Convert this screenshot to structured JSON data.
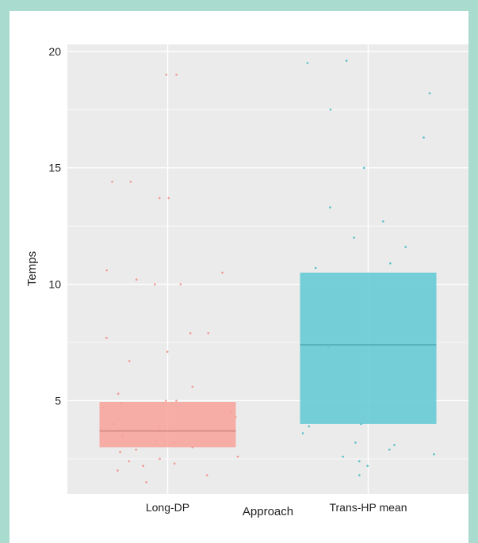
{
  "chart_data": {
    "type": "box",
    "xlabel": "Approach",
    "ylabel": "Temps",
    "categories": [
      "Long-DP",
      "Trans-HP mean"
    ],
    "yticks": [
      5,
      10,
      15,
      20
    ],
    "ylim": [
      1,
      20.3
    ],
    "grid": true,
    "legend": "none",
    "boxes": [
      {
        "category": "Long-DP",
        "q1": 3.0,
        "median": 3.7,
        "q3": 4.95,
        "color": "#f8a29a"
      },
      {
        "category": "Trans-HP mean",
        "q1": 4.0,
        "median": 7.4,
        "q3": 10.5,
        "color": "#5ec9d4"
      }
    ],
    "points": [
      {
        "category": "Long-DP",
        "values": [
          19.0,
          19.0,
          14.4,
          14.4,
          13.7,
          13.7,
          10.6,
          10.5,
          10.0,
          10.0,
          10.2,
          7.9,
          7.9,
          7.7,
          7.1,
          6.7,
          5.6,
          5.3,
          5.0,
          5.0,
          4.9,
          4.7,
          4.5,
          4.3,
          4.0,
          3.9,
          3.7,
          3.5,
          3.3,
          3.2,
          3.0,
          2.9,
          2.8,
          2.6,
          2.5,
          2.4,
          2.3,
          2.2,
          2.0,
          1.8,
          1.5
        ],
        "color": "#f28b82"
      },
      {
        "category": "Trans-HP mean",
        "values": [
          19.6,
          19.5,
          18.2,
          17.5,
          16.3,
          15.0,
          13.3,
          12.7,
          12.0,
          11.6,
          10.9,
          10.7,
          7.3,
          4.0,
          3.9,
          3.6,
          3.2,
          3.1,
          2.9,
          2.7,
          2.6,
          2.4,
          2.2,
          1.8
        ],
        "color": "#3fb9c4"
      }
    ]
  }
}
